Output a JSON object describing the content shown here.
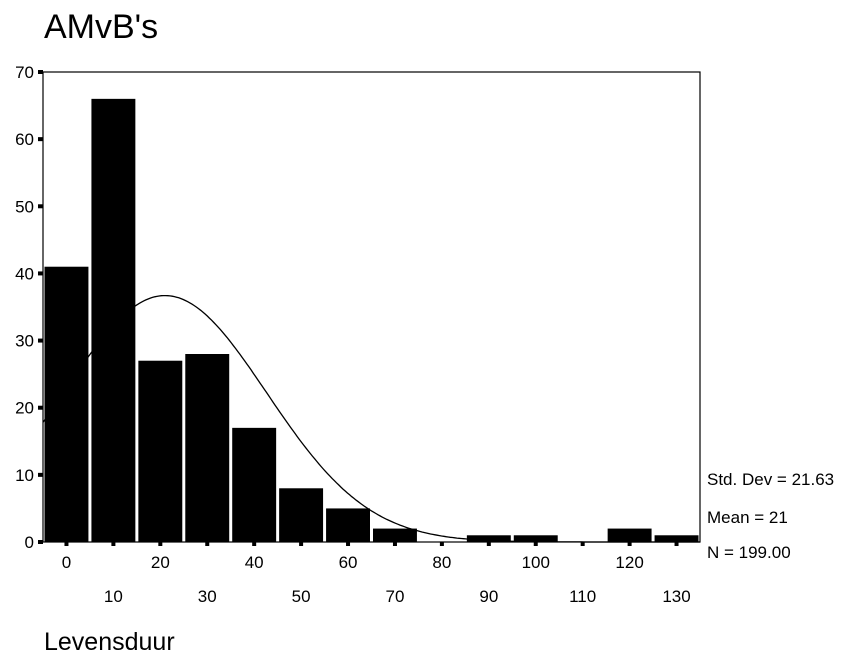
{
  "title": "AMvB's",
  "stats": {
    "std_dev": "Std. Dev = 21.63",
    "mean": "Mean = 21",
    "n": "N = 199.00"
  },
  "chart_data": {
    "type": "bar",
    "title": "AMvB's",
    "xlabel": "Levensduur",
    "ylabel": "",
    "bin_centers": [
      0,
      10,
      20,
      30,
      40,
      50,
      60,
      70,
      80,
      90,
      100,
      110,
      120,
      130
    ],
    "values": [
      41,
      66,
      27,
      28,
      17,
      8,
      5,
      2,
      0,
      1,
      1,
      0,
      2,
      1
    ],
    "x_ticks_upper": [
      "0",
      "20",
      "40",
      "60",
      "80",
      "100",
      "120"
    ],
    "x_ticks_lower": [
      "10",
      "30",
      "50",
      "70",
      "90",
      "110",
      "130"
    ],
    "y_ticks": [
      0,
      10,
      20,
      30,
      40,
      50,
      60,
      70
    ],
    "ylim": [
      0,
      70
    ],
    "normal_curve": {
      "mean": 21,
      "std_dev": 21.63,
      "n": 199,
      "bin_width": 10
    },
    "colors": {
      "bars": "#000000",
      "curve": "#000000",
      "background": "#ffffff"
    },
    "grid": false,
    "legend": "none"
  }
}
